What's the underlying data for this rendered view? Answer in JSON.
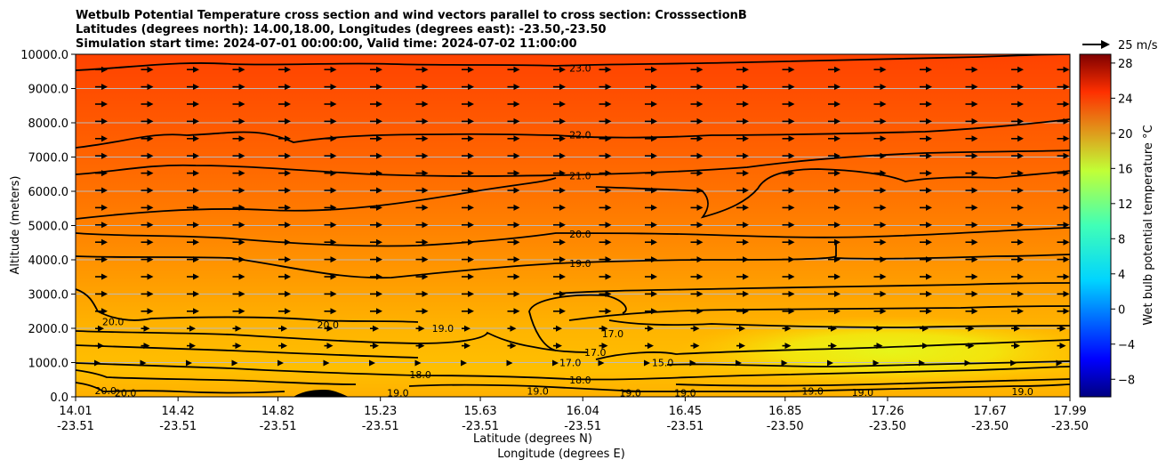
{
  "chart_data": {
    "type": "heatmap",
    "title_lines": [
      "Wetbulb Potential Temperature cross section and wind vectors parallel to cross section: CrosssectionB",
      "Latitudes (degrees north): 14.00,18.00, Longitudes (degrees east): -23.50,-23.50",
      "Simulation start time: 2024-07-01 00:00:00, Valid time: 2024-07-02 11:00:00"
    ],
    "xlabel": "Latitude (degrees N)",
    "xlabel2": "Longitude (degrees E)",
    "ylabel": "Altitude (meters)",
    "colorbar_label": "Wet bulb potential temperature °C",
    "quiver_key_label": "25 m/s",
    "ylim": [
      0,
      10000
    ],
    "x_ticks": [
      {
        "lat": "14.01",
        "lon": "-23.51"
      },
      {
        "lat": "14.42",
        "lon": "-23.51"
      },
      {
        "lat": "14.82",
        "lon": "-23.51"
      },
      {
        "lat": "15.23",
        "lon": "-23.51"
      },
      {
        "lat": "15.63",
        "lon": "-23.51"
      },
      {
        "lat": "16.04",
        "lon": "-23.51"
      },
      {
        "lat": "16.45",
        "lon": "-23.51"
      },
      {
        "lat": "16.85",
        "lon": "-23.50"
      },
      {
        "lat": "17.26",
        "lon": "-23.50"
      },
      {
        "lat": "17.67",
        "lon": "-23.50"
      },
      {
        "lat": "17.99",
        "lon": "-23.50"
      }
    ],
    "y_ticks": [
      "0.0",
      "1000.0",
      "2000.0",
      "3000.0",
      "4000.0",
      "5000.0",
      "6000.0",
      "7000.0",
      "8000.0",
      "9000.0",
      "10000.0"
    ],
    "colorbar_ticks": [
      "28",
      "24",
      "20",
      "16",
      "12",
      "8",
      "4",
      "0",
      "−4",
      "−8"
    ],
    "colorbar_range": [
      -10,
      29
    ],
    "colors": {
      "low": "#000080",
      "mid": "#00ffff",
      "high": "#800000",
      "field_surface": "#ffb400",
      "field_top": "#ff4000",
      "field_min": "#e6f51a"
    },
    "contour_labels": [
      {
        "text": "23.0",
        "lat": 16.03,
        "alt": 9600
      },
      {
        "text": "22.0",
        "lat": 16.03,
        "alt": 7650
      },
      {
        "text": "21.0",
        "lat": 16.03,
        "alt": 6450
      },
      {
        "text": "20.0",
        "lat": 16.03,
        "alt": 4750
      },
      {
        "text": "19.0",
        "lat": 16.03,
        "alt": 3900
      },
      {
        "text": "20.0",
        "lat": 14.16,
        "alt": 2200
      },
      {
        "text": "20.0",
        "lat": 15.02,
        "alt": 2100
      },
      {
        "text": "19.0",
        "lat": 15.48,
        "alt": 2000
      },
      {
        "text": "18.0",
        "lat": 15.39,
        "alt": 650
      },
      {
        "text": "19.0",
        "lat": 15.3,
        "alt": 120
      },
      {
        "text": "19.0",
        "lat": 15.86,
        "alt": 170
      },
      {
        "text": "20.0",
        "lat": 14.13,
        "alt": 180
      },
      {
        "text": "20.0",
        "lat": 14.21,
        "alt": 120
      },
      {
        "text": "18.0",
        "lat": 16.03,
        "alt": 500
      },
      {
        "text": "17.0",
        "lat": 15.99,
        "alt": 1000
      },
      {
        "text": "17.0",
        "lat": 16.09,
        "alt": 1300
      },
      {
        "text": "17.0",
        "lat": 16.16,
        "alt": 1850
      },
      {
        "text": "15.0",
        "lat": 16.36,
        "alt": 1000
      },
      {
        "text": "19.0",
        "lat": 16.23,
        "alt": 120
      },
      {
        "text": "19.0",
        "lat": 16.45,
        "alt": 120
      },
      {
        "text": "19.0",
        "lat": 16.96,
        "alt": 170
      },
      {
        "text": "19.0",
        "lat": 17.16,
        "alt": 130
      },
      {
        "text": "19.0",
        "lat": 17.8,
        "alt": 150
      }
    ]
  }
}
